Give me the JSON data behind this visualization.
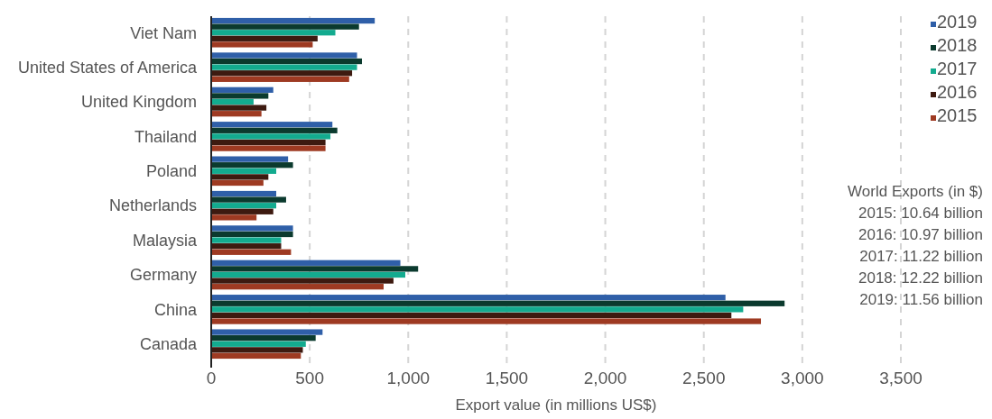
{
  "chart_data": {
    "type": "bar",
    "orientation": "horizontal",
    "xlabel": "Export value (in millions US$)",
    "categories": [
      "Viet Nam",
      "United States of America",
      "United Kingdom",
      "Thailand",
      "Poland",
      "Netherlands",
      "Malaysia",
      "Germany",
      "China",
      "Canada"
    ],
    "series": [
      {
        "name": "2019",
        "color": "#2f5fa8",
        "values": [
          830,
          740,
          315,
          615,
          390,
          330,
          415,
          960,
          2610,
          565
        ]
      },
      {
        "name": "2018",
        "color": "#0b3a2e",
        "values": [
          750,
          765,
          290,
          640,
          415,
          380,
          415,
          1050,
          2910,
          530
        ]
      },
      {
        "name": "2017",
        "color": "#13ab8f",
        "values": [
          630,
          740,
          215,
          605,
          330,
          330,
          355,
          985,
          2700,
          480
        ]
      },
      {
        "name": "2016",
        "color": "#3d1a10",
        "values": [
          540,
          715,
          280,
          580,
          290,
          315,
          355,
          925,
          2640,
          465
        ]
      },
      {
        "name": "2015",
        "color": "#9e3a22",
        "values": [
          515,
          700,
          255,
          580,
          265,
          230,
          405,
          875,
          2790,
          455
        ]
      }
    ],
    "xlim": [
      0,
      3500
    ],
    "xticks": [
      0,
      500,
      {
        "value": 1000,
        "label": "1,000"
      },
      {
        "value": 1500,
        "label": "1,500"
      },
      {
        "value": 2000,
        "label": "2,000"
      },
      {
        "value": 2500,
        "label": "2,500"
      },
      {
        "value": 3000,
        "label": "3,000"
      },
      {
        "value": 3500,
        "label": "3,500"
      }
    ],
    "grid": "x",
    "legend": "top right",
    "annotations": [
      "World Exports (in $)",
      "2015: 10.64 billion",
      "2016: 10.97 billion",
      "2017: 11.22 billion",
      "2018: 12.22 billion",
      "2019: 11.56 billion"
    ]
  }
}
